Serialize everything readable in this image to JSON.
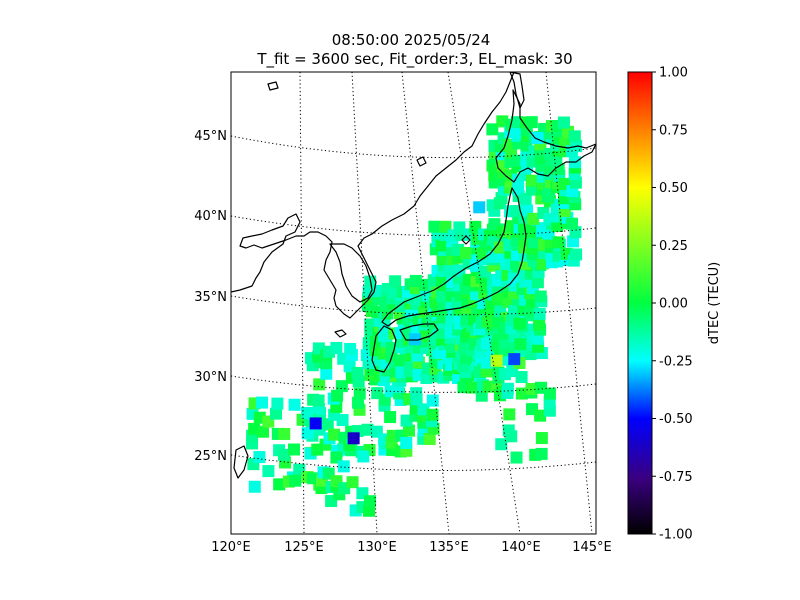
{
  "title": {
    "line1": "08:50:00 2025/05/24",
    "line2": "T_fit = 3600 sec, Fit_order:3, EL_mask: 30"
  },
  "map": {
    "lat_labels": [
      "45°N",
      "40°N",
      "35°N",
      "30°N",
      "25°N"
    ],
    "lon_labels": [
      "120°E",
      "125°E",
      "130°E",
      "135°E",
      "140°E",
      "145°E"
    ],
    "lon_range": [
      120,
      145
    ],
    "lat_range": [
      20,
      48
    ],
    "gridlines": true,
    "coastline_color": "#000000"
  },
  "colorbar": {
    "label": "dTEC (TECU)",
    "ticks": [
      "1.00",
      "0.75",
      "0.50",
      "0.25",
      "0.00",
      "-0.25",
      "-0.50",
      "-0.75",
      "-1.00"
    ],
    "range": [
      -1.0,
      1.0
    ],
    "colormap": [
      "#000000",
      "#3a0080",
      "#0000ff",
      "#00ffff",
      "#00ff40",
      "#ffff00",
      "#ff8000",
      "#ff0000"
    ]
  },
  "chart_data": {
    "type": "heatmap",
    "title": "08:50:00 2025/05/24 / T_fit = 3600 sec, Fit_order:3, EL_mask: 30",
    "xlabel": "",
    "ylabel": "",
    "xlim": [
      120,
      145
    ],
    "ylim": [
      20,
      48
    ],
    "colorbar_label": "dTEC (TECU)",
    "value_range": [
      -1.0,
      1.0
    ],
    "dominant_value": 0.05,
    "notable_cells": [
      {
        "lon": 125.8,
        "lat": 26.7,
        "value": -0.45
      },
      {
        "lon": 128.4,
        "lat": 25.8,
        "value": -0.55
      },
      {
        "lon": 139.4,
        "lat": 30.6,
        "value": -0.35
      },
      {
        "lon": 138.2,
        "lat": 30.5,
        "value": 0.35
      },
      {
        "lon": 132.6,
        "lat": 31.8,
        "value": -0.2
      },
      {
        "lon": 141.0,
        "lat": 44.0,
        "value": -0.15
      },
      {
        "lon": 137.0,
        "lat": 39.8,
        "value": -0.2
      }
    ]
  }
}
